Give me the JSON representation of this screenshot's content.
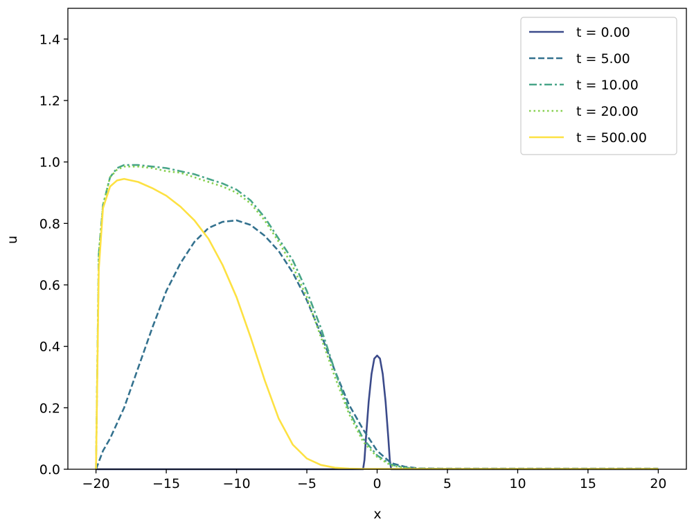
{
  "chart_data": {
    "type": "line",
    "title": "",
    "xlabel": "x",
    "ylabel": "u",
    "xlim": [
      -22,
      22
    ],
    "ylim": [
      0,
      1.5
    ],
    "xticks": [
      -20,
      -15,
      -10,
      -5,
      0,
      5,
      10,
      15,
      20
    ],
    "xtick_labels": [
      "−20",
      "−15",
      "−10",
      "−5",
      "0",
      "5",
      "10",
      "15",
      "20"
    ],
    "yticks": [
      0.0,
      0.2,
      0.4,
      0.6,
      0.8,
      1.0,
      1.2,
      1.4
    ],
    "ytick_labels": [
      "0.0",
      "0.2",
      "0.4",
      "0.6",
      "0.8",
      "1.0",
      "1.2",
      "1.4"
    ],
    "grid": false,
    "legend_position": "top-right",
    "series": [
      {
        "name": "t = 0.00",
        "color": "#3b4a8a",
        "style": "solid",
        "x": [
          -20,
          -1.0,
          -0.9,
          -0.8,
          -0.6,
          -0.4,
          -0.2,
          0,
          0.2,
          0.4,
          0.6,
          0.8,
          0.9,
          1.0,
          20
        ],
        "y": [
          0,
          0,
          0.03,
          0.1,
          0.22,
          0.31,
          0.36,
          0.37,
          0.36,
          0.31,
          0.22,
          0.1,
          0.03,
          0,
          0
        ]
      },
      {
        "name": "t = 5.00",
        "color": "#33718e",
        "style": "dashed",
        "x": [
          -20,
          -19.5,
          -19,
          -18,
          -17,
          -16,
          -15,
          -14,
          -13,
          -12,
          -11,
          -10,
          -9,
          -8,
          -7,
          -6,
          -5,
          -4,
          -3,
          -2,
          -1,
          0,
          1,
          2,
          3,
          5,
          10,
          15,
          20
        ],
        "y": [
          0,
          0.06,
          0.1,
          0.2,
          0.33,
          0.46,
          0.58,
          0.67,
          0.74,
          0.785,
          0.805,
          0.81,
          0.795,
          0.76,
          0.71,
          0.64,
          0.55,
          0.44,
          0.32,
          0.21,
          0.13,
          0.06,
          0.02,
          0.008,
          0.003,
          0.002,
          0.002,
          0.002,
          0.002
        ]
      },
      {
        "name": "t = 10.00",
        "color": "#48a588",
        "style": "dashdot",
        "x": [
          -20,
          -19.8,
          -19.5,
          -19,
          -18.5,
          -18,
          -17,
          -16,
          -15,
          -14,
          -13,
          -12,
          -11,
          -10,
          -9,
          -8,
          -7,
          -6,
          -5,
          -4,
          -3,
          -2,
          -1,
          0,
          1,
          2,
          3,
          5,
          10,
          15,
          20
        ],
        "y": [
          0,
          0.7,
          0.86,
          0.95,
          0.98,
          0.99,
          0.99,
          0.985,
          0.98,
          0.97,
          0.96,
          0.945,
          0.93,
          0.91,
          0.875,
          0.82,
          0.75,
          0.68,
          0.58,
          0.46,
          0.32,
          0.19,
          0.1,
          0.045,
          0.015,
          0.005,
          0.002,
          0.001,
          0.001,
          0.001,
          0.001
        ]
      },
      {
        "name": "t = 20.00",
        "color": "#86d04f",
        "style": "dotted",
        "x": [
          -20,
          -19.8,
          -19.5,
          -19,
          -18.5,
          -18,
          -17,
          -16,
          -15,
          -14,
          -13,
          -12,
          -11,
          -10,
          -9,
          -8,
          -7,
          -6,
          -5,
          -4,
          -3,
          -2,
          -1,
          0,
          1,
          2,
          3,
          5,
          10,
          15,
          20
        ],
        "y": [
          0,
          0.7,
          0.86,
          0.95,
          0.975,
          0.985,
          0.985,
          0.98,
          0.97,
          0.965,
          0.95,
          0.935,
          0.92,
          0.9,
          0.865,
          0.81,
          0.74,
          0.66,
          0.56,
          0.43,
          0.3,
          0.18,
          0.09,
          0.04,
          0.012,
          0.004,
          0.002,
          0.001,
          0.001,
          0.001,
          0.001
        ]
      },
      {
        "name": "t = 500.00",
        "color": "#fde142",
        "style": "solid",
        "x": [
          -20,
          -19.8,
          -19.5,
          -19,
          -18.5,
          -18,
          -17,
          -16,
          -15,
          -14,
          -13,
          -12,
          -11,
          -10,
          -9,
          -8,
          -7,
          -6,
          -5,
          -4,
          -3,
          -2,
          -1,
          0,
          5,
          10,
          15,
          20
        ],
        "y": [
          0,
          0.65,
          0.85,
          0.92,
          0.94,
          0.945,
          0.935,
          0.915,
          0.89,
          0.855,
          0.81,
          0.75,
          0.665,
          0.56,
          0.43,
          0.29,
          0.165,
          0.08,
          0.035,
          0.014,
          0.005,
          0.002,
          0.001,
          0.001,
          0.001,
          0.001,
          0.001,
          0.001
        ]
      }
    ]
  }
}
